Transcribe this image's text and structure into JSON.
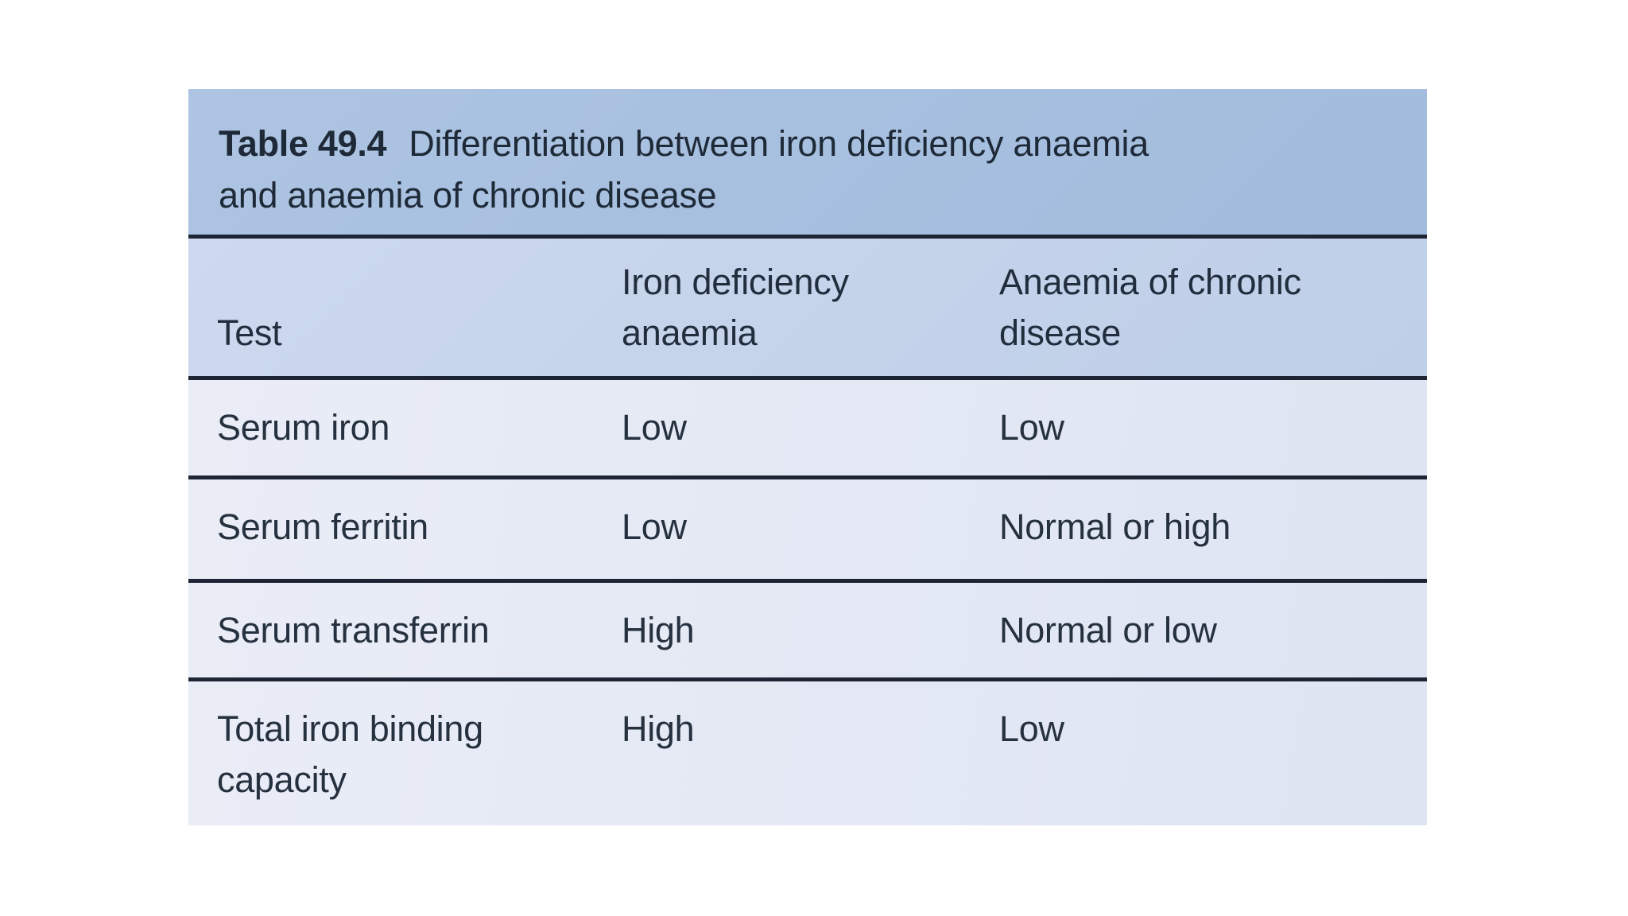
{
  "table": {
    "label": "Table 49.4",
    "caption": "Differentiation between iron deficiency anaemia and anaemia of chronic disease",
    "caption_lines": [
      "Differentiation between iron deficiency anaemia",
      "and anaemia of chronic disease"
    ],
    "columns": [
      {
        "label": "Test",
        "lines": [
          "Test"
        ]
      },
      {
        "label": "Iron deficiency anaemia",
        "lines": [
          "Iron deficiency",
          "anaemia"
        ]
      },
      {
        "label": "Anaemia of chronic disease",
        "lines": [
          "Anaemia of chronic",
          "disease"
        ]
      }
    ],
    "rows": [
      [
        "Serum iron",
        "Low",
        "Low"
      ],
      [
        "Serum ferritin",
        "Low",
        "Normal or high"
      ],
      [
        "Serum transferrin",
        "High",
        "Normal or low"
      ],
      [
        "Total iron binding capacity",
        "High",
        "Low"
      ]
    ],
    "colors": {
      "title_band": "#a8c0e0",
      "header_band": "#c4d3ea",
      "row_band": "#e4e9f4",
      "rule": "#1d2433",
      "text": "#26313f",
      "page_background": "#ffffff"
    }
  }
}
